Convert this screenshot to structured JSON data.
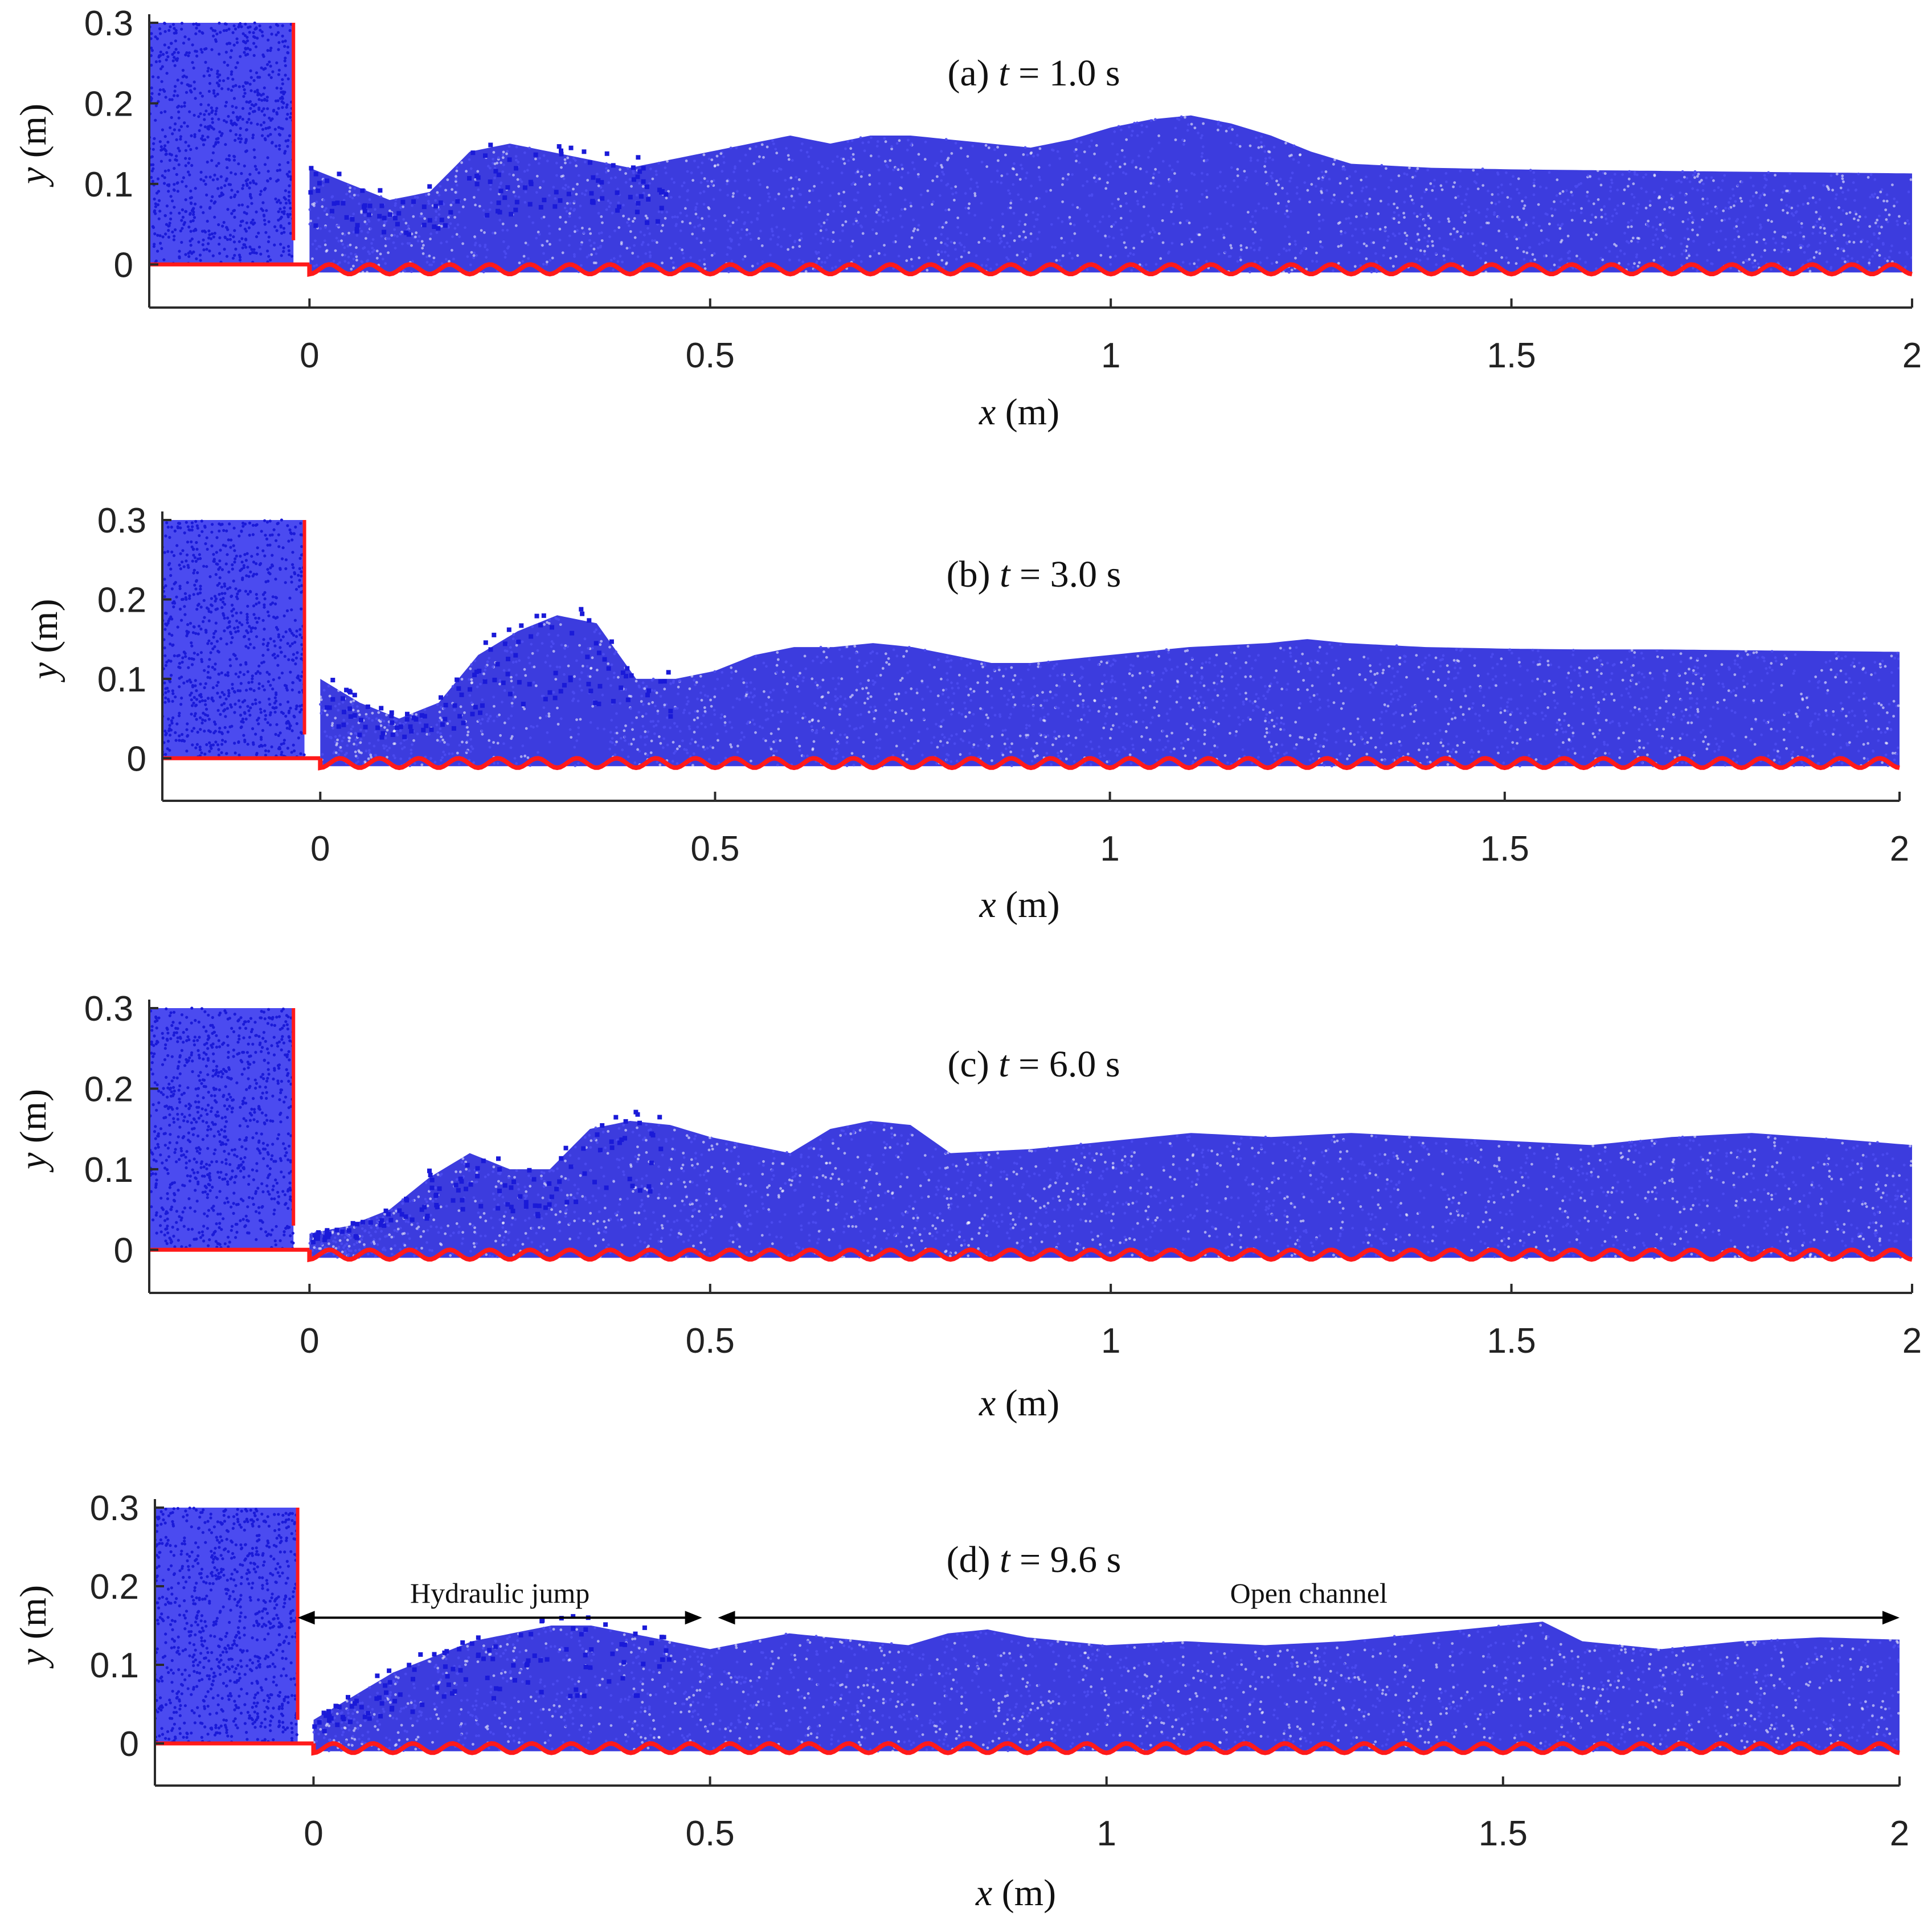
{
  "colors": {
    "fluid": "#1a1ad8",
    "fluid_light": "#4b4bf0",
    "boundary": "#ff1a1a",
    "axis": "#2a2a2a"
  },
  "chart_data": [
    {
      "type": "scatter",
      "panel": "(a)",
      "time_label": "t",
      "title_rest": "= 1.0 s",
      "xlabel_var": "x",
      "xlabel_unit": "(m)",
      "ylabel_var": "y",
      "ylabel_unit": "(m)",
      "xlim": [
        -0.2,
        2
      ],
      "ylim": [
        -0.05,
        0.3
      ],
      "xticks": [
        "0",
        "0.5",
        "1",
        "1.5",
        "2"
      ],
      "xtick_values": [
        0,
        0.5,
        1,
        1.5,
        2
      ],
      "yticks": [
        "0",
        "0.1",
        "0.2",
        "0.3"
      ],
      "ytick_values": [
        0,
        0.1,
        0.2,
        0.3
      ],
      "gate_x": -0.02,
      "reservoir_height": 0.3,
      "free_surface": {
        "x": [
          0.0,
          0.05,
          0.1,
          0.15,
          0.2,
          0.25,
          0.3,
          0.35,
          0.4,
          0.45,
          0.5,
          0.55,
          0.6,
          0.65,
          0.7,
          0.75,
          0.8,
          0.85,
          0.9,
          0.95,
          1.0,
          1.05,
          1.1,
          1.15,
          1.2,
          1.25,
          1.3,
          1.4,
          1.5,
          1.6,
          1.7,
          1.8,
          1.9,
          2.0
        ],
        "y": [
          0.12,
          0.1,
          0.08,
          0.09,
          0.14,
          0.15,
          0.14,
          0.13,
          0.12,
          0.13,
          0.14,
          0.15,
          0.16,
          0.15,
          0.16,
          0.16,
          0.155,
          0.15,
          0.145,
          0.155,
          0.17,
          0.18,
          0.185,
          0.175,
          0.16,
          0.14,
          0.125,
          0.12,
          0.118,
          0.117,
          0.116,
          0.115,
          0.114,
          0.113
        ]
      }
    },
    {
      "type": "scatter",
      "panel": "(b)",
      "time_label": "t",
      "title_rest": "= 3.0 s",
      "xlabel_var": "x",
      "xlabel_unit": "(m)",
      "ylabel_var": "y",
      "ylabel_unit": "(m)",
      "xlim": [
        -0.2,
        2
      ],
      "ylim": [
        -0.05,
        0.3
      ],
      "xticks": [
        "0",
        "0.5",
        "1",
        "1.5",
        "2"
      ],
      "xtick_values": [
        0,
        0.5,
        1,
        1.5,
        2
      ],
      "yticks": [
        "0",
        "0.1",
        "0.2",
        "0.3"
      ],
      "ytick_values": [
        0,
        0.1,
        0.2,
        0.3
      ],
      "gate_x": -0.02,
      "reservoir_height": 0.3,
      "free_surface": {
        "x": [
          0.0,
          0.05,
          0.1,
          0.15,
          0.2,
          0.25,
          0.3,
          0.35,
          0.4,
          0.45,
          0.5,
          0.55,
          0.6,
          0.65,
          0.7,
          0.75,
          0.8,
          0.85,
          0.9,
          0.95,
          1.0,
          1.1,
          1.2,
          1.25,
          1.3,
          1.4,
          1.5,
          1.6,
          1.7,
          1.8,
          1.9,
          2.0
        ],
        "y": [
          0.1,
          0.07,
          0.05,
          0.07,
          0.13,
          0.16,
          0.18,
          0.17,
          0.1,
          0.1,
          0.11,
          0.13,
          0.14,
          0.14,
          0.145,
          0.14,
          0.13,
          0.12,
          0.12,
          0.125,
          0.13,
          0.14,
          0.145,
          0.15,
          0.145,
          0.14,
          0.138,
          0.137,
          0.137,
          0.136,
          0.135,
          0.134
        ]
      }
    },
    {
      "type": "scatter",
      "panel": "(c)",
      "time_label": "t",
      "title_rest": "= 6.0 s",
      "xlabel_var": "x",
      "xlabel_unit": "(m)",
      "ylabel_var": "y",
      "ylabel_unit": "(m)",
      "xlim": [
        -0.2,
        2
      ],
      "ylim": [
        -0.05,
        0.3
      ],
      "xticks": [
        "0",
        "0.5",
        "1",
        "1.5",
        "2"
      ],
      "xtick_values": [
        0,
        0.5,
        1,
        1.5,
        2
      ],
      "yticks": [
        "0",
        "0.1",
        "0.2",
        "0.3"
      ],
      "ytick_values": [
        0,
        0.1,
        0.2,
        0.3
      ],
      "gate_x": -0.02,
      "reservoir_height": 0.3,
      "free_surface": {
        "x": [
          0.0,
          0.05,
          0.1,
          0.15,
          0.2,
          0.25,
          0.3,
          0.35,
          0.4,
          0.45,
          0.5,
          0.55,
          0.6,
          0.65,
          0.7,
          0.75,
          0.8,
          0.9,
          1.0,
          1.1,
          1.2,
          1.3,
          1.4,
          1.5,
          1.6,
          1.7,
          1.8,
          1.9,
          2.0
        ],
        "y": [
          0.02,
          0.03,
          0.05,
          0.09,
          0.12,
          0.1,
          0.1,
          0.15,
          0.16,
          0.155,
          0.14,
          0.13,
          0.12,
          0.15,
          0.16,
          0.155,
          0.12,
          0.125,
          0.135,
          0.145,
          0.14,
          0.145,
          0.14,
          0.135,
          0.13,
          0.14,
          0.145,
          0.138,
          0.13
        ]
      }
    },
    {
      "type": "scatter",
      "panel": "(d)",
      "time_label": "t",
      "title_rest": "= 9.6 s",
      "xlabel_var": "x",
      "xlabel_unit": "(m)",
      "ylabel_var": "y",
      "ylabel_unit": "(m)",
      "xlim": [
        -0.2,
        2
      ],
      "ylim": [
        -0.05,
        0.3
      ],
      "xticks": [
        "0",
        "0.5",
        "1",
        "1.5",
        "2"
      ],
      "xtick_values": [
        0,
        0.5,
        1,
        1.5,
        2
      ],
      "yticks": [
        "0",
        "0.1",
        "0.2",
        "0.3"
      ],
      "ytick_values": [
        0,
        0.1,
        0.2,
        0.3
      ],
      "gate_x": -0.02,
      "reservoir_height": 0.3,
      "free_surface": {
        "x": [
          0.0,
          0.05,
          0.1,
          0.15,
          0.2,
          0.25,
          0.3,
          0.35,
          0.4,
          0.45,
          0.5,
          0.55,
          0.6,
          0.65,
          0.7,
          0.75,
          0.8,
          0.85,
          0.9,
          1.0,
          1.1,
          1.2,
          1.3,
          1.4,
          1.5,
          1.55,
          1.6,
          1.7,
          1.8,
          1.9,
          2.0
        ],
        "y": [
          0.03,
          0.06,
          0.09,
          0.11,
          0.13,
          0.14,
          0.15,
          0.15,
          0.14,
          0.13,
          0.12,
          0.13,
          0.14,
          0.135,
          0.13,
          0.125,
          0.14,
          0.145,
          0.135,
          0.125,
          0.13,
          0.125,
          0.13,
          0.14,
          0.15,
          0.155,
          0.13,
          0.12,
          0.13,
          0.135,
          0.132
        ]
      },
      "annotations": [
        {
          "label": "Hydraulic jump",
          "x_start": -0.02,
          "x_end": 0.49,
          "y": 0.16
        },
        {
          "label": "Open channel",
          "x_start": 0.51,
          "x_end": 2.0,
          "y": 0.16
        }
      ]
    }
  ]
}
